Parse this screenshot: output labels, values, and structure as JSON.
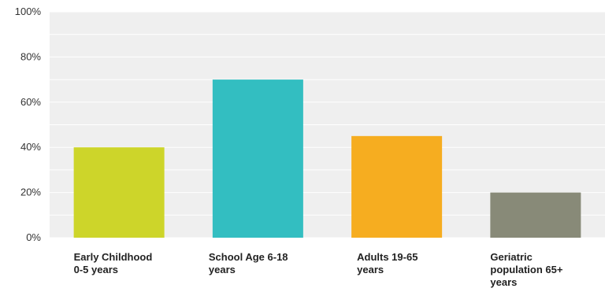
{
  "chart_data": {
    "type": "bar",
    "title": "",
    "xlabel": "",
    "ylabel": "",
    "ylim": [
      0,
      100
    ],
    "y_ticks": [
      "0%",
      "20%",
      "40%",
      "60%",
      "80%",
      "100%"
    ],
    "y_tick_values": [
      0,
      20,
      40,
      60,
      80,
      100
    ],
    "grid": true,
    "legend": "none",
    "categories": [
      [
        "Early Childhood",
        "0-5 years"
      ],
      [
        "School Age 6-18",
        "years"
      ],
      [
        "Adults 19-65",
        "years"
      ],
      [
        "Geriatric",
        "population 65+",
        "years"
      ]
    ],
    "values": [
      40,
      70,
      45,
      20
    ],
    "colors": [
      "#cdd52a",
      "#33bec1",
      "#f6ad20",
      "#888a78"
    ],
    "plot_background": "#efefef",
    "grid_color": "#ffffff"
  }
}
